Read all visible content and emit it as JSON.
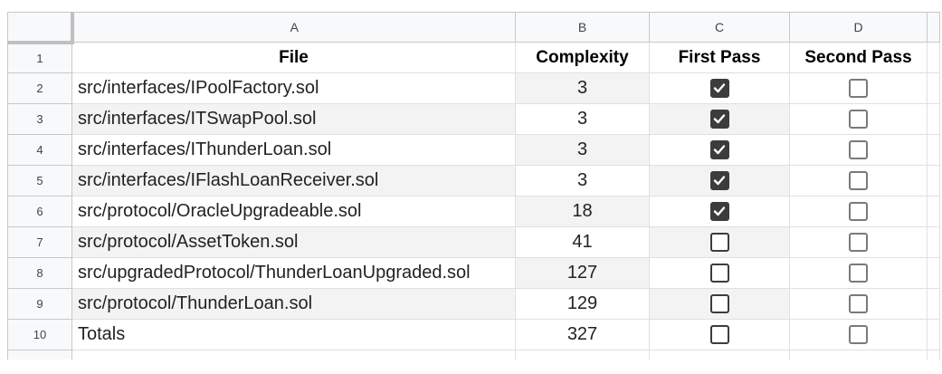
{
  "columns": [
    "A",
    "B",
    "C",
    "D"
  ],
  "headers": {
    "row_number": "1",
    "file": "File",
    "complexity": "Complexity",
    "first_pass": "First Pass",
    "second_pass": "Second Pass"
  },
  "rows": [
    {
      "row_number": "2",
      "file": "src/interfaces/IPoolFactory.sol",
      "complexity": "3",
      "first_pass": true,
      "second_pass": false
    },
    {
      "row_number": "3",
      "file": "src/interfaces/ITSwapPool.sol",
      "complexity": "3",
      "first_pass": true,
      "second_pass": false
    },
    {
      "row_number": "4",
      "file": "src/interfaces/IThunderLoan.sol",
      "complexity": "3",
      "first_pass": true,
      "second_pass": false
    },
    {
      "row_number": "5",
      "file": "src/interfaces/IFlashLoanReceiver.sol",
      "complexity": "3",
      "first_pass": true,
      "second_pass": false
    },
    {
      "row_number": "6",
      "file": "src/protocol/OracleUpgradeable.sol",
      "complexity": "18",
      "first_pass": true,
      "second_pass": false
    },
    {
      "row_number": "7",
      "file": "src/protocol/AssetToken.sol",
      "complexity": "41",
      "first_pass": false,
      "second_pass": false
    },
    {
      "row_number": "8",
      "file": "src/upgradedProtocol/ThunderLoanUpgraded.sol",
      "complexity": "127",
      "first_pass": false,
      "second_pass": false
    },
    {
      "row_number": "9",
      "file": "src/protocol/ThunderLoan.sol",
      "complexity": "129",
      "first_pass": false,
      "second_pass": false
    },
    {
      "row_number": "10",
      "file": "Totals",
      "complexity": "327",
      "first_pass": false,
      "second_pass": false
    }
  ]
}
